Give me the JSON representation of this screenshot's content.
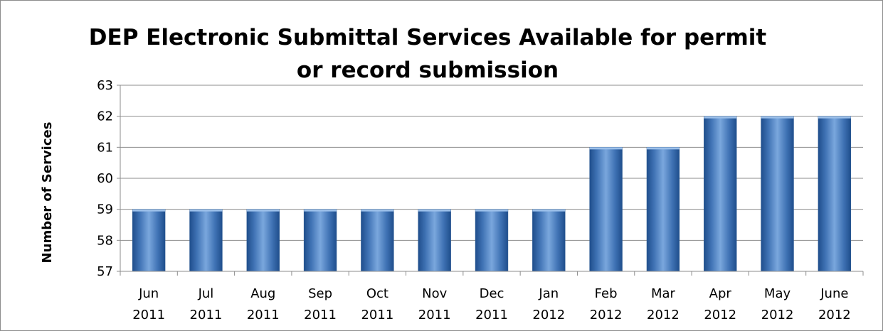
{
  "chart_data": {
    "type": "bar",
    "title_lines": [
      "DEP Electronic Submittal Services Available for permit",
      "or record submission"
    ],
    "xlabel": "",
    "ylabel": "Number of Services",
    "ylim": [
      57,
      63
    ],
    "yticks": [
      57,
      58,
      59,
      60,
      61,
      62,
      63
    ],
    "grid": true,
    "legend": "none",
    "bar_color": "#4f81bd",
    "categories": [
      [
        "Jun",
        "2011"
      ],
      [
        "Jul",
        "2011"
      ],
      [
        "Aug",
        "2011"
      ],
      [
        "Sep",
        "2011"
      ],
      [
        "Oct",
        "2011"
      ],
      [
        "Nov",
        "2011"
      ],
      [
        "Dec",
        "2011"
      ],
      [
        "Jan",
        "2012"
      ],
      [
        "Feb",
        "2012"
      ],
      [
        "Mar",
        "2012"
      ],
      [
        "Apr",
        "2012"
      ],
      [
        "May",
        "2012"
      ],
      [
        "June",
        "2012"
      ]
    ],
    "values": [
      59,
      59,
      59,
      59,
      59,
      59,
      59,
      59,
      61,
      61,
      62,
      62,
      62
    ]
  }
}
